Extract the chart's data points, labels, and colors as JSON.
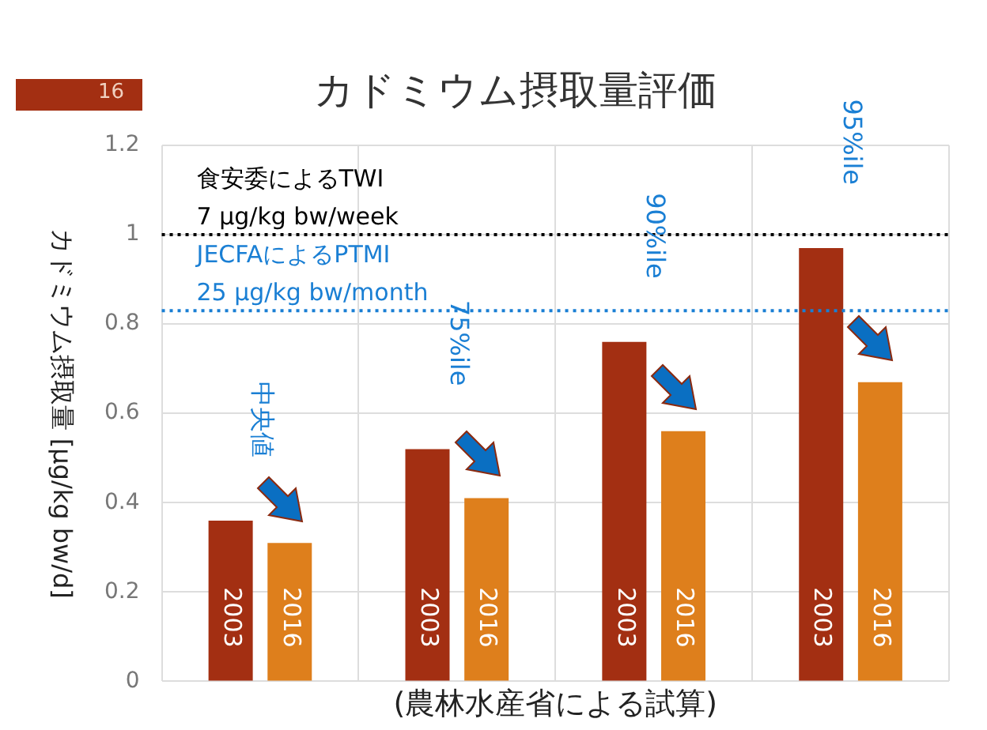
{
  "chart_data": {
    "type": "bar",
    "title": "カドミウム摂取量評価",
    "xlabel": "(農林水産省による試算)",
    "ylabel": "カドミウム摂取量 [μg/kg bw/d]",
    "annotations": [
      "16"
    ],
    "categories": [
      "中央値",
      "75%ile",
      "90%ile",
      "95%ile"
    ],
    "series": [
      {
        "name": "2003",
        "color": "#a32f12",
        "values": [
          0.36,
          0.52,
          0.76,
          0.97
        ]
      },
      {
        "name": "2016",
        "color": "#de7f1c",
        "values": [
          0.31,
          0.41,
          0.56,
          0.67
        ]
      }
    ],
    "ylim": [
      0,
      1.2
    ],
    "yticks": [
      0,
      0.2,
      0.4,
      0.6,
      0.8,
      1,
      1.2
    ],
    "grid": true,
    "legend": false,
    "ref_lines": [
      {
        "axis": "y",
        "value": 1,
        "label": "食安委によるTWI\n7 μg/kg bw/week",
        "color": "#000000",
        "line_style": "dotted"
      },
      {
        "axis": "y",
        "value": 0.83,
        "label": "JECFAによるPTMI\n25 μg/kg bw/month",
        "color": "#1a7fd4",
        "line_style": "dotted"
      }
    ]
  }
}
